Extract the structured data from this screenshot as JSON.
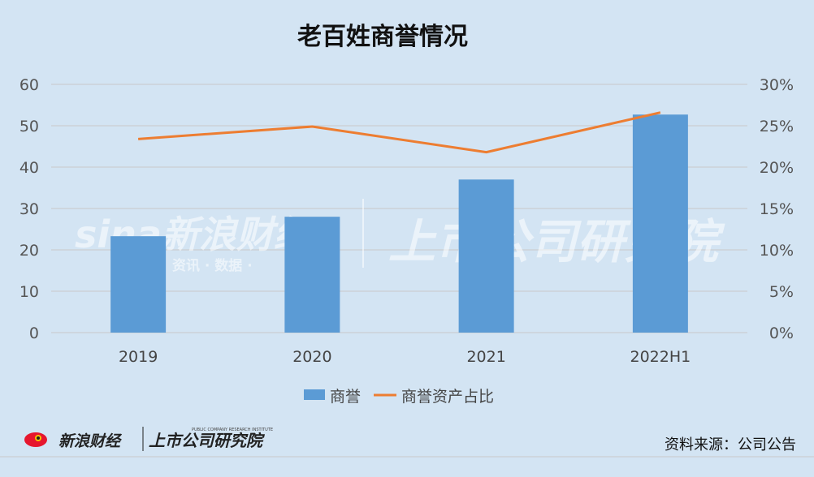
{
  "chart_data": {
    "type": "bar",
    "title": "老百姓商誉情况",
    "categories": [
      "2019",
      "2020",
      "2021",
      "2022H1"
    ],
    "series": [
      {
        "name": "商誉",
        "type": "bar",
        "axis": "left",
        "values": [
          23.3,
          28.0,
          37.0,
          52.7
        ]
      },
      {
        "name": "商誉资产占比",
        "type": "line",
        "axis": "right",
        "values": [
          0.234,
          0.249,
          0.218,
          0.266
        ]
      }
    ],
    "y_left": {
      "min": 0,
      "max": 60,
      "ticks": [
        "0",
        "10",
        "20",
        "30",
        "40",
        "50",
        "60"
      ]
    },
    "y_right": {
      "min": 0,
      "max": 0.3,
      "ticks": [
        "0%",
        "5%",
        "10%",
        "15%",
        "20%",
        "25%",
        "30%"
      ]
    },
    "grid": true,
    "legend_position": "bottom",
    "colors": {
      "bar": "#5b9bd5",
      "line": "#ed7d31"
    }
  },
  "watermark": {
    "brand": "sina新浪财经",
    "sub": "资讯 · 数据 ·",
    "institute": "上市公司研究院"
  },
  "footer": {
    "logo_brand": "新浪财经",
    "logo_institute": "上市公司研究院",
    "logo_institute_en": "PUBLIC COMPANY RESEARCH INSTITUTE",
    "source": "资料来源：公司公告"
  }
}
